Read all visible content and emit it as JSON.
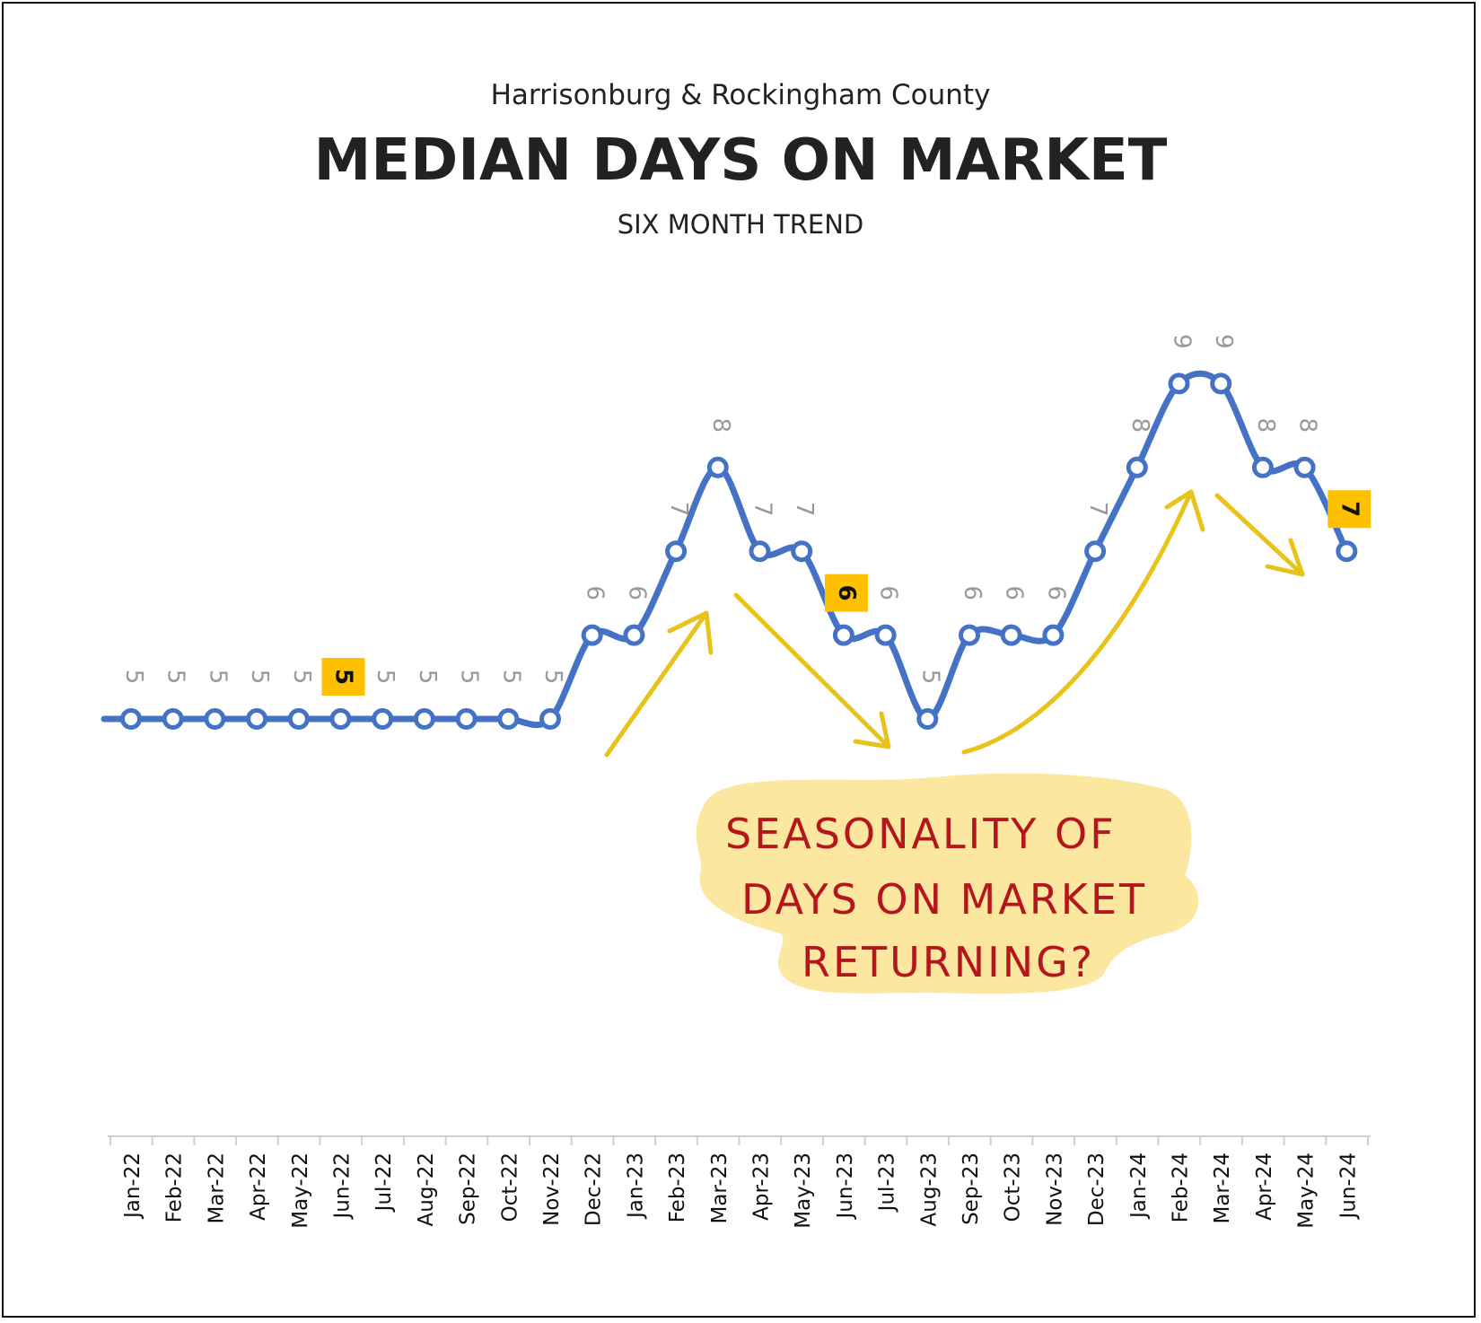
{
  "header": {
    "region": "Harrisonburg & Rockingham County",
    "title": "MEDIAN DAYS ON MARKET",
    "subtitle": "SIX MONTH TREND"
  },
  "annotation": {
    "lines": [
      "SEASONALITY OF",
      "DAYS ON MARKET",
      "RETURNING?"
    ],
    "text_color": "#b3171c",
    "highlight_color": "#fbe7a0",
    "arrow_color": "#e8c31a"
  },
  "chart_data": {
    "type": "line",
    "categories": [
      "Jan-22",
      "Feb-22",
      "Mar-22",
      "Apr-22",
      "May-22",
      "Jun-22",
      "Jul-22",
      "Aug-22",
      "Sep-22",
      "Oct-22",
      "Nov-22",
      "Dec-22",
      "Jan-23",
      "Feb-23",
      "Mar-23",
      "Apr-23",
      "May-23",
      "Jun-23",
      "Jul-23",
      "Aug-23",
      "Sep-23",
      "Oct-23",
      "Nov-23",
      "Dec-23",
      "Jan-24",
      "Feb-24",
      "Mar-24",
      "Apr-24",
      "May-24",
      "Jun-24"
    ],
    "series": [
      {
        "values": [
          5,
          5,
          5,
          5,
          5,
          5,
          5,
          5,
          5,
          5,
          5,
          6,
          6,
          7,
          8,
          7,
          7,
          6,
          6,
          5,
          6,
          6,
          6,
          7,
          8,
          9,
          9,
          8,
          8,
          7
        ]
      }
    ],
    "highlighted_categories": [
      "Jun-22",
      "Jun-23",
      "Jun-24"
    ],
    "line_color": "#4472c4",
    "label_color": "#999999",
    "highlight_box_color": "#ffc000",
    "grid": false
  }
}
